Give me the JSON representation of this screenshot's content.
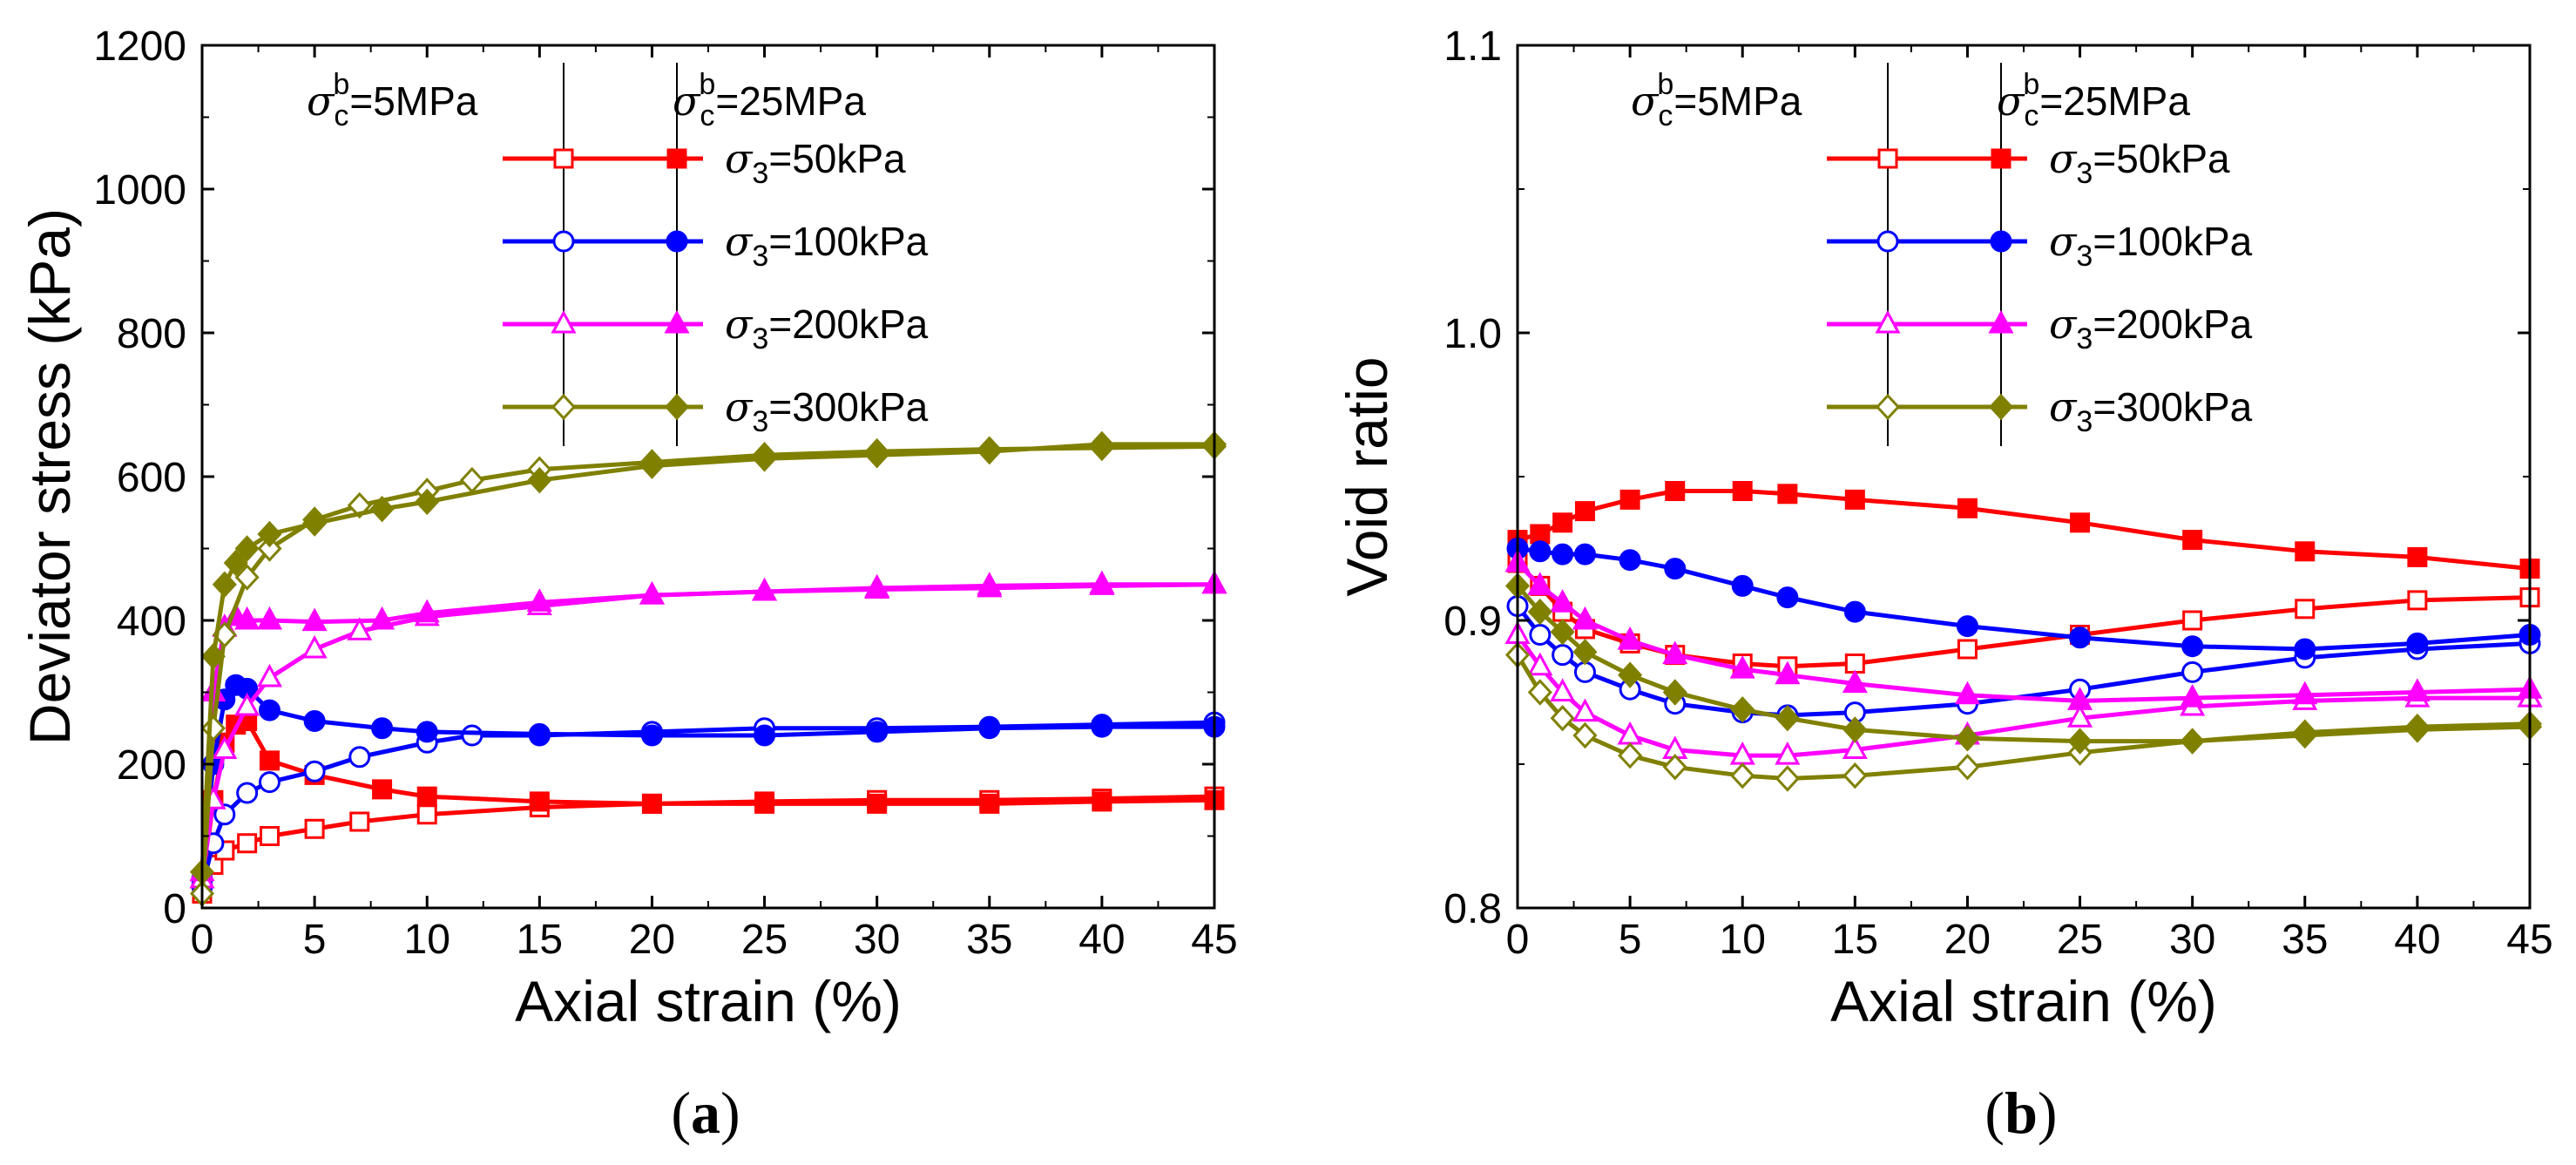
{
  "chart_data": [
    {
      "type": "line",
      "panel_label": "(a)",
      "xlabel": "Axial strain (%)",
      "ylabel": "Deviator stress (kPa)",
      "xlim": [
        0,
        45
      ],
      "ylim": [
        0,
        1200
      ],
      "xticks": [
        0,
        5,
        10,
        15,
        20,
        25,
        30,
        35,
        40,
        45
      ],
      "yticks": [
        0,
        200,
        400,
        600,
        800,
        1000,
        1200
      ],
      "legend": {
        "group_headers": [
          {
            "sym": "σ",
            "sub": "c",
            "sup": "b",
            "rest": "=5MPa"
          },
          {
            "sym": "σ",
            "sub": "c",
            "sup": "b",
            "rest": "=25MPa"
          }
        ],
        "entries": [
          {
            "sym": "σ",
            "sub": "3",
            "rest": "=50kPa",
            "color": "#ff0000",
            "marker": "square"
          },
          {
            "sym": "σ",
            "sub": "3",
            "rest": "=100kPa",
            "color": "#0000ff",
            "marker": "circle"
          },
          {
            "sym": "σ",
            "sub": "3",
            "rest": "=200kPa",
            "color": "#ff00ff",
            "marker": "triangle"
          },
          {
            "sym": "σ",
            "sub": "3",
            "rest": "=300kPa",
            "color": "#808000",
            "marker": "diamond"
          }
        ]
      },
      "series": [
        {
          "name": "σ3=50kPa, σcb=5MPa",
          "color": "#ff0000",
          "marker": "square",
          "filled": false,
          "x": [
            0,
            0.5,
            1,
            2,
            3,
            5,
            7,
            10,
            15,
            20,
            25,
            30,
            35,
            40,
            45
          ],
          "y": [
            20,
            60,
            80,
            90,
            100,
            110,
            120,
            130,
            140,
            145,
            148,
            150,
            150,
            152,
            155
          ]
        },
        {
          "name": "σ3=50kPa, σcb=25MPa",
          "color": "#ff0000",
          "marker": "square",
          "filled": true,
          "x": [
            0,
            0.5,
            1,
            1.5,
            2,
            3,
            5,
            8,
            10,
            15,
            20,
            25,
            30,
            35,
            40,
            45
          ],
          "y": [
            30,
            150,
            230,
            255,
            260,
            205,
            185,
            165,
            155,
            148,
            145,
            145,
            145,
            145,
            148,
            150
          ]
        },
        {
          "name": "σ3=100kPa, σcb=5MPa",
          "color": "#0000ff",
          "marker": "circle",
          "filled": false,
          "x": [
            0,
            0.5,
            1,
            2,
            3,
            5,
            7,
            10,
            12,
            15,
            20,
            25,
            30,
            35,
            40,
            45
          ],
          "y": [
            30,
            90,
            130,
            160,
            175,
            190,
            210,
            230,
            240,
            240,
            245,
            250,
            250,
            252,
            255,
            258
          ]
        },
        {
          "name": "σ3=100kPa, σcb=25MPa",
          "color": "#0000ff",
          "marker": "circle",
          "filled": true,
          "x": [
            0,
            0.5,
            1,
            1.5,
            2,
            3,
            5,
            8,
            10,
            15,
            20,
            25,
            30,
            35,
            40,
            45
          ],
          "y": [
            40,
            200,
            290,
            310,
            305,
            275,
            260,
            250,
            245,
            242,
            240,
            240,
            245,
            250,
            252,
            252
          ]
        },
        {
          "name": "σ3=200kPa, σcb=5MPa",
          "color": "#ff00ff",
          "marker": "triangle",
          "filled": false,
          "x": [
            0,
            0.5,
            1,
            2,
            3,
            5,
            7,
            10,
            15,
            20,
            25,
            30,
            35,
            40,
            45
          ],
          "y": [
            40,
            150,
            220,
            280,
            320,
            360,
            385,
            405,
            420,
            435,
            440,
            445,
            448,
            450,
            450
          ]
        },
        {
          "name": "σ3=200kPa, σcb=25MPa",
          "color": "#ff00ff",
          "marker": "triangle",
          "filled": true,
          "x": [
            0,
            0.5,
            1,
            1.5,
            2,
            3,
            5,
            8,
            10,
            15,
            20,
            25,
            30,
            35,
            40,
            45
          ],
          "y": [
            50,
            300,
            390,
            405,
            400,
            400,
            398,
            400,
            410,
            425,
            435,
            440,
            443,
            445,
            448,
            450
          ]
        },
        {
          "name": "σ3=300kPa, σcb=5MPa",
          "color": "#808000",
          "marker": "diamond",
          "filled": false,
          "x": [
            0,
            0.5,
            1,
            2,
            3,
            5,
            7,
            10,
            12,
            15,
            20,
            25,
            30,
            35,
            40,
            45
          ],
          "y": [
            20,
            250,
            380,
            460,
            500,
            540,
            560,
            580,
            595,
            610,
            620,
            630,
            635,
            638,
            640,
            642
          ]
        },
        {
          "name": "σ3=300kPa, σcb=25MPa",
          "color": "#808000",
          "marker": "diamond",
          "filled": true,
          "x": [
            0,
            0.5,
            1,
            1.5,
            2,
            3,
            5,
            8,
            10,
            15,
            20,
            25,
            30,
            35,
            40,
            45
          ],
          "y": [
            50,
            350,
            450,
            480,
            500,
            520,
            535,
            555,
            565,
            595,
            615,
            625,
            630,
            635,
            645,
            645
          ]
        }
      ]
    },
    {
      "type": "line",
      "panel_label": "(b)",
      "xlabel": "Axial strain (%)",
      "ylabel": "Void ratio",
      "xlim": [
        0,
        45
      ],
      "ylim": [
        0.8,
        1.1
      ],
      "xticks": [
        0,
        5,
        10,
        15,
        20,
        25,
        30,
        35,
        40,
        45
      ],
      "yticks": [
        0.8,
        0.9,
        1.0,
        1.1
      ],
      "legend": {
        "group_headers": [
          {
            "sym": "σ",
            "sub": "c",
            "sup": "b",
            "rest": "=5MPa"
          },
          {
            "sym": "σ",
            "sub": "c",
            "sup": "b",
            "rest": "=25MPa"
          }
        ],
        "entries": [
          {
            "sym": "σ",
            "sub": "3",
            "rest": "=50kPa",
            "color": "#ff0000",
            "marker": "square"
          },
          {
            "sym": "σ",
            "sub": "3",
            "rest": "=100kPa",
            "color": "#0000ff",
            "marker": "circle"
          },
          {
            "sym": "σ",
            "sub": "3",
            "rest": "=200kPa",
            "color": "#ff00ff",
            "marker": "triangle"
          },
          {
            "sym": "σ",
            "sub": "3",
            "rest": "=300kPa",
            "color": "#808000",
            "marker": "diamond"
          }
        ]
      },
      "series": [
        {
          "name": "σ3=50kPa, σcb=5MPa",
          "color": "#ff0000",
          "marker": "square",
          "filled": false,
          "x": [
            0,
            1,
            2,
            3,
            5,
            7,
            10,
            12,
            15,
            20,
            25,
            30,
            35,
            40,
            45
          ],
          "y": [
            0.92,
            0.912,
            0.903,
            0.897,
            0.892,
            0.888,
            0.885,
            0.884,
            0.885,
            0.89,
            0.895,
            0.9,
            0.904,
            0.907,
            0.908
          ]
        },
        {
          "name": "σ3=50kPa, σcb=25MPa",
          "color": "#ff0000",
          "marker": "square",
          "filled": true,
          "x": [
            0,
            1,
            2,
            3,
            5,
            7,
            10,
            12,
            15,
            20,
            25,
            30,
            35,
            40,
            45
          ],
          "y": [
            0.928,
            0.93,
            0.934,
            0.938,
            0.942,
            0.945,
            0.945,
            0.944,
            0.942,
            0.939,
            0.934,
            0.928,
            0.924,
            0.922,
            0.918
          ]
        },
        {
          "name": "σ3=100kPa, σcb=5MPa",
          "color": "#0000ff",
          "marker": "circle",
          "filled": false,
          "x": [
            0,
            1,
            2,
            3,
            5,
            7,
            10,
            12,
            15,
            20,
            25,
            30,
            35,
            40,
            45
          ],
          "y": [
            0.905,
            0.895,
            0.888,
            0.882,
            0.876,
            0.871,
            0.868,
            0.867,
            0.868,
            0.871,
            0.876,
            0.882,
            0.887,
            0.89,
            0.892
          ]
        },
        {
          "name": "σ3=100kPa, σcb=25MPa",
          "color": "#0000ff",
          "marker": "circle",
          "filled": true,
          "x": [
            0,
            1,
            2,
            3,
            5,
            7,
            10,
            12,
            15,
            20,
            25,
            30,
            35,
            40,
            45
          ],
          "y": [
            0.925,
            0.924,
            0.923,
            0.923,
            0.921,
            0.918,
            0.912,
            0.908,
            0.903,
            0.898,
            0.894,
            0.891,
            0.89,
            0.892,
            0.895
          ]
        },
        {
          "name": "σ3=200kPa, σcb=5MPa",
          "color": "#ff00ff",
          "marker": "triangle",
          "filled": false,
          "x": [
            0,
            1,
            2,
            3,
            5,
            7,
            10,
            12,
            15,
            20,
            25,
            30,
            35,
            40,
            45
          ],
          "y": [
            0.895,
            0.884,
            0.875,
            0.868,
            0.86,
            0.855,
            0.853,
            0.853,
            0.855,
            0.86,
            0.866,
            0.87,
            0.872,
            0.873,
            0.873
          ]
        },
        {
          "name": "σ3=200kPa, σcb=25MPa",
          "color": "#ff00ff",
          "marker": "triangle",
          "filled": true,
          "x": [
            0,
            1,
            2,
            3,
            5,
            7,
            10,
            12,
            15,
            20,
            25,
            30,
            35,
            40,
            45
          ],
          "y": [
            0.92,
            0.912,
            0.906,
            0.9,
            0.893,
            0.888,
            0.883,
            0.881,
            0.878,
            0.874,
            0.872,
            0.873,
            0.874,
            0.875,
            0.876
          ]
        },
        {
          "name": "σ3=300kPa, σcb=5MPa",
          "color": "#808000",
          "marker": "diamond",
          "filled": false,
          "x": [
            0,
            1,
            2,
            3,
            5,
            7,
            10,
            12,
            15,
            20,
            25,
            30,
            35,
            40,
            45
          ],
          "y": [
            0.888,
            0.875,
            0.866,
            0.86,
            0.853,
            0.849,
            0.846,
            0.845,
            0.846,
            0.849,
            0.854,
            0.858,
            0.861,
            0.863,
            0.864
          ]
        },
        {
          "name": "σ3=300kPa, σcb=25MPa",
          "color": "#808000",
          "marker": "diamond",
          "filled": true,
          "x": [
            0,
            1,
            2,
            3,
            5,
            7,
            10,
            12,
            15,
            20,
            25,
            30,
            35,
            40,
            45
          ],
          "y": [
            0.912,
            0.903,
            0.896,
            0.889,
            0.881,
            0.875,
            0.869,
            0.866,
            0.862,
            0.859,
            0.858,
            0.858,
            0.86,
            0.862,
            0.863
          ]
        }
      ]
    }
  ]
}
